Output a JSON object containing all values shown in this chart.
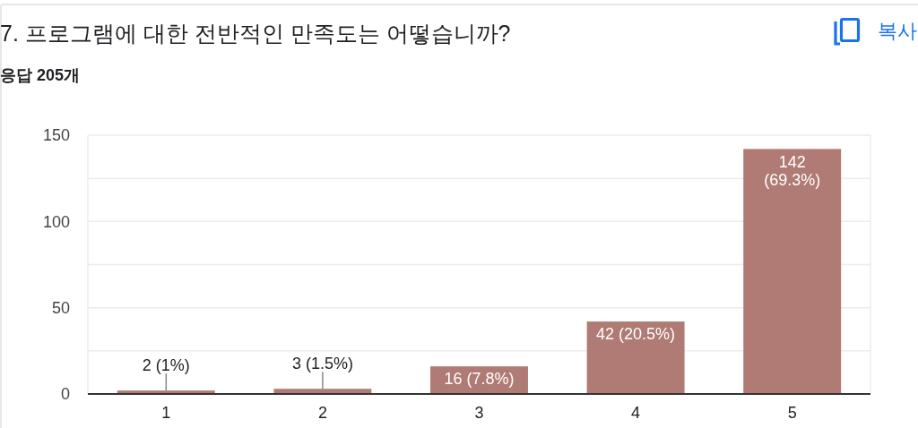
{
  "chart_data": {
    "type": "bar",
    "title": "7. 프로그램에 대한 전반적인 만족도는 어떻습니까?",
    "subtitle": "응답 205개",
    "annotations": [
      "복사"
    ],
    "categories": [
      "1",
      "2",
      "3",
      "4",
      "5"
    ],
    "values": [
      2,
      3,
      16,
      42,
      142
    ],
    "color": "#b07b74",
    "value_labels": [
      "2 (1%)",
      "3 (1.5%)",
      "16 (7.8%)",
      "42 (20.5%)",
      "142 (69.3%)"
    ],
    "ylim": [
      0,
      150
    ],
    "yticks": [
      0,
      {
        "value": 25,
        "label": null
      },
      50,
      {
        "value": 75,
        "label": null
      },
      100,
      {
        "value": 125,
        "label": null
      },
      150
    ],
    "grid": true
  }
}
